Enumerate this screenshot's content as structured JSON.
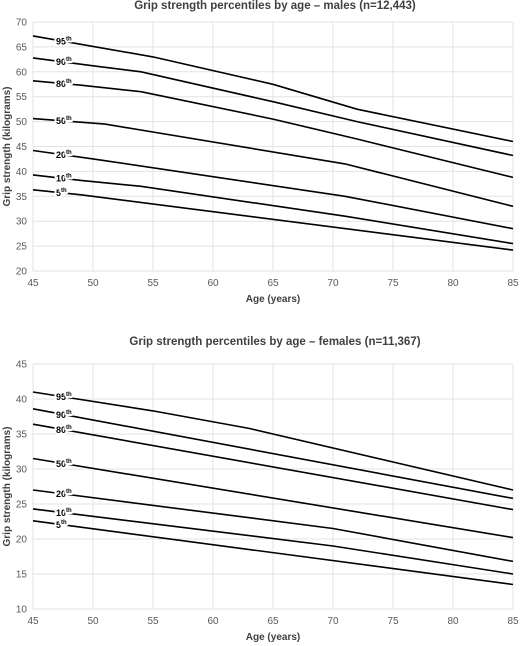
{
  "chart_data": [
    {
      "type": "line",
      "title": "Grip strength percentiles by age – males (n=12,443)",
      "xlabel": "Age (years)",
      "ylabel": "Grip strength (kilograms)",
      "xlim": [
        45,
        85
      ],
      "ylim": [
        20,
        70
      ],
      "xticks": [
        "45",
        "50",
        "55",
        "60",
        "65",
        "70",
        "75",
        "80",
        "85"
      ],
      "yticks": [
        "20",
        "25",
        "30",
        "35",
        "40",
        "45",
        "50",
        "55",
        "60",
        "65",
        "70"
      ],
      "grid": true,
      "series": [
        {
          "name": "95th",
          "label": "95",
          "sup": "th",
          "x": [
            45,
            55,
            65,
            72,
            85
          ],
          "y": [
            67.2,
            63.0,
            57.5,
            52.5,
            46.0
          ]
        },
        {
          "name": "90th",
          "label": "90",
          "sup": "th",
          "x": [
            45,
            50,
            54,
            65,
            72,
            85
          ],
          "y": [
            62.8,
            61.2,
            60.0,
            54.0,
            50.0,
            43.2
          ]
        },
        {
          "name": "80th",
          "label": "80",
          "sup": "th",
          "x": [
            45,
            49,
            54,
            65,
            72,
            85
          ],
          "y": [
            58.2,
            57.3,
            56.0,
            50.5,
            46.5,
            38.8
          ]
        },
        {
          "name": "50th",
          "label": "50",
          "sup": "th",
          "x": [
            45,
            51,
            71,
            85
          ],
          "y": [
            50.6,
            49.5,
            41.5,
            33.0
          ]
        },
        {
          "name": "20th",
          "label": "20",
          "sup": "th",
          "x": [
            45,
            50,
            71,
            85
          ],
          "y": [
            44.2,
            42.5,
            35.0,
            28.5
          ]
        },
        {
          "name": "10th",
          "label": "10",
          "sup": "th",
          "x": [
            45,
            49,
            54,
            71,
            85
          ],
          "y": [
            39.3,
            38.2,
            37.0,
            31.0,
            25.5
          ]
        },
        {
          "name": "5th",
          "label": "5",
          "sup": "th",
          "x": [
            45,
            49,
            85
          ],
          "y": [
            36.3,
            35.3,
            24.2
          ]
        }
      ]
    },
    {
      "type": "line",
      "title": "Grip strength percentiles by age – females (n=11,367)",
      "xlabel": "Age (years)",
      "ylabel": "Grip strength (kilograms)",
      "xlim": [
        45,
        85
      ],
      "ylim": [
        10,
        45
      ],
      "xticks": [
        "45",
        "50",
        "55",
        "60",
        "65",
        "70",
        "75",
        "80",
        "85"
      ],
      "yticks": [
        "10",
        "15",
        "20",
        "25",
        "30",
        "35",
        "40",
        "45"
      ],
      "grid": true,
      "series": [
        {
          "name": "95th",
          "label": "95",
          "sup": "th",
          "x": [
            45,
            55,
            63,
            85
          ],
          "y": [
            41.0,
            38.3,
            35.8,
            27.0
          ]
        },
        {
          "name": "90th",
          "label": "90",
          "sup": "th",
          "x": [
            45,
            85
          ],
          "y": [
            38.6,
            25.8
          ]
        },
        {
          "name": "80th",
          "label": "80",
          "sup": "th",
          "x": [
            45,
            85
          ],
          "y": [
            36.4,
            24.2
          ]
        },
        {
          "name": "50th",
          "label": "50",
          "sup": "th",
          "x": [
            45,
            85
          ],
          "y": [
            31.5,
            20.2
          ]
        },
        {
          "name": "20th",
          "label": "20",
          "sup": "th",
          "x": [
            45,
            70,
            85
          ],
          "y": [
            27.0,
            21.5,
            16.8
          ]
        },
        {
          "name": "10th",
          "label": "10",
          "sup": "th",
          "x": [
            45,
            70,
            85
          ],
          "y": [
            24.3,
            19.0,
            15.0
          ]
        },
        {
          "name": "5th",
          "label": "5",
          "sup": "th",
          "x": [
            45,
            85
          ],
          "y": [
            22.6,
            13.5
          ]
        }
      ]
    }
  ]
}
